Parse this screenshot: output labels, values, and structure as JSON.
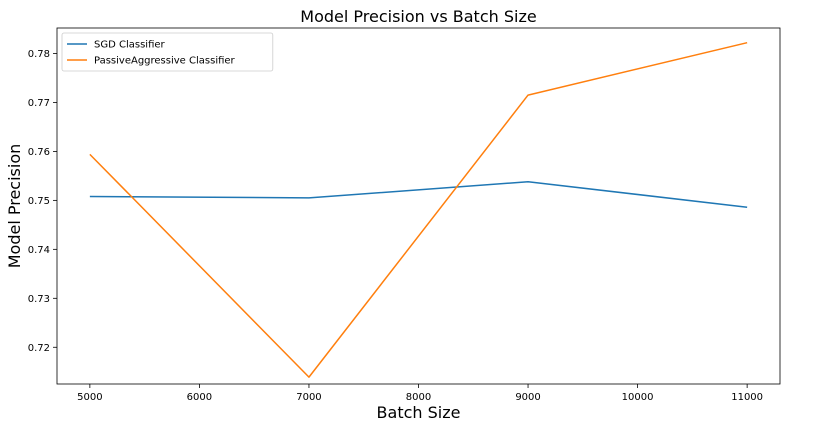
{
  "chart_data": {
    "type": "line",
    "title": "Model Precision vs Batch Size",
    "xlabel": "Batch Size",
    "ylabel": "Model Precision",
    "x": [
      5000,
      7000,
      9000,
      11000
    ],
    "xlim": [
      4700,
      11300
    ],
    "ylim": [
      0.7125,
      0.7852
    ],
    "xticks": [
      5000,
      6000,
      7000,
      8000,
      9000,
      10000,
      11000
    ],
    "yticks": [
      0.72,
      0.73,
      0.74,
      0.75,
      0.76,
      0.77,
      0.78
    ],
    "grid": false,
    "legend_position": "top-left",
    "series": [
      {
        "name": "SGD Classifier",
        "color": "#1f77b4",
        "values": [
          0.7508,
          0.7505,
          0.7538,
          0.7486
        ]
      },
      {
        "name": "PassiveAggressive Classifier",
        "color": "#ff7f0e",
        "values": [
          0.7594,
          0.7139,
          0.7715,
          0.7822
        ]
      }
    ]
  }
}
